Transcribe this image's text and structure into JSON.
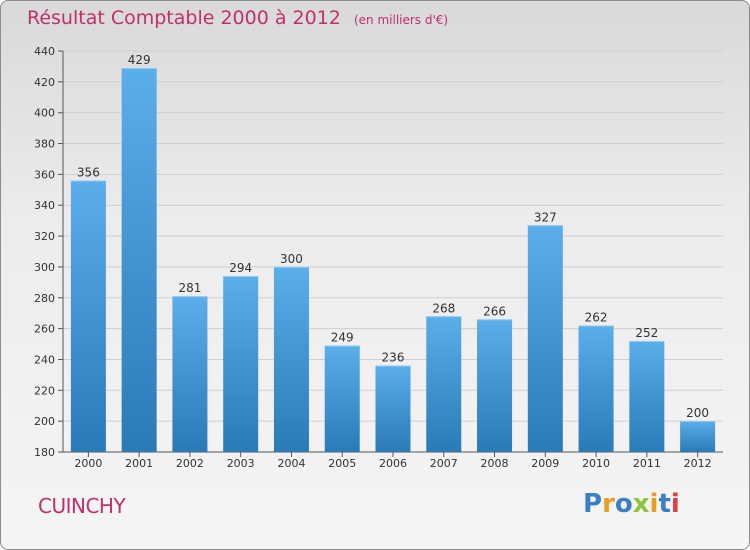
{
  "header": {
    "title": "Résultat Comptable 2000 à 2012",
    "subtitle": "(en milliers d'€)"
  },
  "footer": {
    "city": "CUINCHY",
    "logo_text": "Proxiti",
    "logo_colors": [
      "#3a7fc4",
      "#e8a020",
      "#3a7fc4",
      "#8cc63f",
      "#e8a020",
      "#3a7fc4",
      "#e04040"
    ]
  },
  "colors": {
    "accent": "#c0306a",
    "bar_light": "#5aaeea",
    "bar_dark": "#2a7ab8"
  },
  "chart_data": {
    "type": "bar",
    "categories": [
      "2000",
      "2001",
      "2002",
      "2003",
      "2004",
      "2005",
      "2006",
      "2007",
      "2008",
      "2009",
      "2010",
      "2011",
      "2012"
    ],
    "values": [
      356,
      429,
      281,
      294,
      300,
      249,
      236,
      268,
      266,
      327,
      262,
      252,
      200
    ],
    "ylim": [
      180,
      440
    ],
    "yticks": [
      180,
      200,
      220,
      240,
      260,
      280,
      300,
      320,
      340,
      360,
      380,
      400,
      420,
      440
    ],
    "grid": true
  }
}
